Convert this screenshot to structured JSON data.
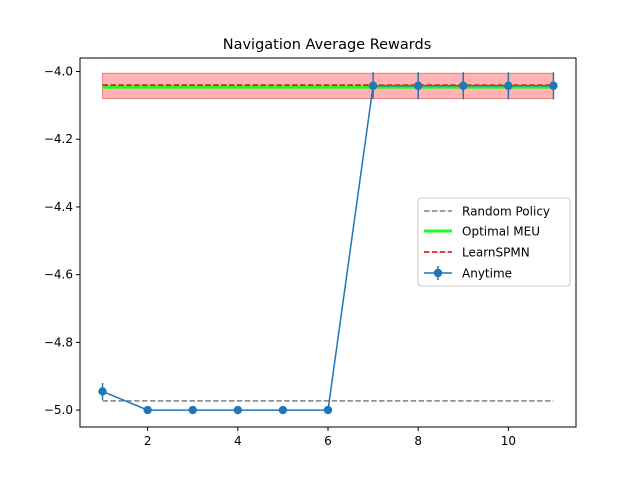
{
  "chart_data": {
    "type": "line",
    "title": "Navigation Average Rewards",
    "xlabel": "",
    "ylabel": "",
    "xlim": [
      0.5,
      11.5
    ],
    "ylim": [
      -5.05,
      -3.96
    ],
    "xticks": [
      2,
      4,
      6,
      8,
      10
    ],
    "yticks": [
      -5.0,
      -4.8,
      -4.6,
      -4.4,
      -4.2,
      -4.0
    ],
    "xtick_labels": [
      "2",
      "4",
      "6",
      "8",
      "10"
    ],
    "ytick_labels": [
      "−5.0",
      "−4.8",
      "−4.6",
      "−4.4",
      "−4.2",
      "−4.0"
    ],
    "grid": false,
    "legend_position": "center-right",
    "series": [
      {
        "name": "Random Policy",
        "style": "dashed",
        "color": "#808080",
        "x": [
          1,
          11
        ],
        "y": [
          -4.973,
          -4.973
        ]
      },
      {
        "name": "Optimal MEU",
        "style": "solid-thick",
        "color": "#1aff1a",
        "x": [
          1,
          11
        ],
        "y": [
          -4.046,
          -4.046
        ],
        "band": {
          "low": -4.08,
          "high": -4.005,
          "color": "#ff9999"
        }
      },
      {
        "name": "LearnSPMN",
        "style": "dashed",
        "color": "#e60000",
        "x": [
          1,
          11
        ],
        "y": [
          -4.04,
          -4.04
        ]
      },
      {
        "name": "Anytime",
        "style": "errorbar-line",
        "color": "#1f77b4",
        "x": [
          1,
          2,
          3,
          4,
          5,
          6,
          7,
          8,
          9,
          10,
          11
        ],
        "y": [
          -4.945,
          -5.0,
          -5.0,
          -5.0,
          -5.0,
          -5.0,
          -4.042,
          -4.042,
          -4.042,
          -4.042,
          -4.042
        ],
        "err": [
          0.025,
          0,
          0,
          0,
          0,
          0,
          0.04,
          0.04,
          0.04,
          0.04,
          0.04
        ]
      }
    ]
  }
}
